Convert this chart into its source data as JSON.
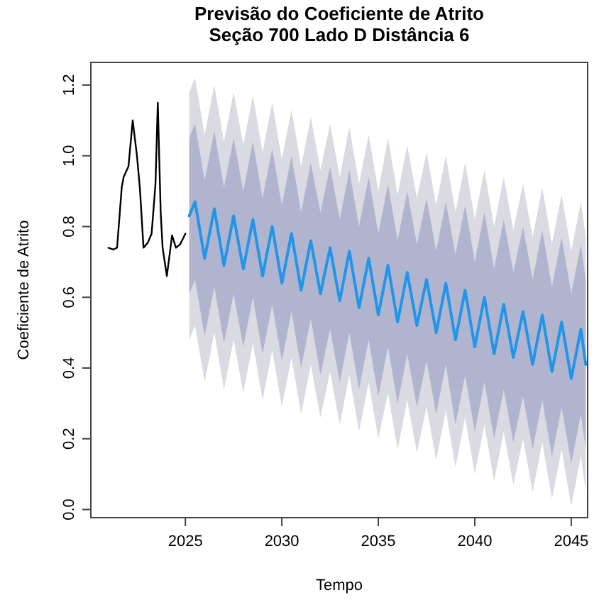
{
  "chart_data": {
    "type": "line",
    "title": "Previsão do Coeficiente de Atrito",
    "subtitle": "Seção 700 Lado D Distância 6",
    "xlabel": "Tempo",
    "ylabel": "Coeficiente de Atrito",
    "xlim": [
      2020.1,
      2045.85
    ],
    "xticks": [
      2025,
      2030,
      2035,
      2040,
      2045
    ],
    "ylim": [
      -0.023,
      1.264
    ],
    "yticks": [
      {
        "value": 0,
        "label": "0.0"
      },
      0.2,
      0.4,
      0.6,
      0.8,
      {
        "value": 1,
        "label": "1.0"
      },
      1.2
    ],
    "grid": false,
    "marker": "none",
    "line_style": "solid",
    "series": [
      {
        "color": "#000000",
        "x": [
          2021.01,
          2021.26,
          2021.46,
          2021.7,
          2021.8,
          2022.05,
          2022.27,
          2022.49,
          2022.64,
          2022.83,
          2023.06,
          2023.25,
          2023.45,
          2023.57,
          2023.72,
          2023.82,
          2024.04,
          2024.31,
          2024.51,
          2024.73,
          2025.0
        ],
        "values": [
          0.74,
          0.735,
          0.74,
          0.91,
          0.94,
          0.97,
          1.1,
          1.0,
          0.91,
          0.74,
          0.755,
          0.78,
          0.92,
          1.15,
          0.84,
          0.74,
          0.66,
          0.775,
          0.74,
          0.75,
          0.78
        ]
      },
      {
        "color": "#d9dae2",
        "x": [
          2025.2,
          2025.5,
          2026,
          2026.5,
          2027,
          2027.5,
          2028,
          2028.5,
          2029,
          2029.5,
          2030,
          2030.5,
          2031,
          2031.5,
          2032,
          2032.5,
          2033,
          2033.5,
          2034,
          2034.5,
          2035,
          2035.5,
          2036,
          2036.5,
          2037,
          2037.5,
          2038,
          2038.5,
          2039,
          2039.5,
          2040,
          2040.5,
          2041,
          2041.5,
          2042,
          2042.5,
          2043,
          2043.5,
          2044,
          2044.5,
          2045,
          2045.5,
          2045.75
        ],
        "values": [
          null,
          null,
          null,
          null,
          null,
          null,
          null,
          null,
          null,
          null,
          null,
          null,
          null,
          null,
          null,
          null,
          null,
          null,
          null,
          null,
          null,
          null,
          null,
          null,
          null,
          null,
          null,
          null,
          null,
          null,
          null,
          null,
          null,
          null,
          null,
          null,
          null,
          null,
          null,
          null,
          null,
          null,
          null
        ],
        "upper": [
          1.18,
          1.22,
          1.06,
          1.2,
          1.04,
          1.18,
          1.03,
          1.17,
          1.01,
          1.15,
          0.99,
          1.13,
          0.97,
          1.11,
          0.96,
          1.09,
          0.94,
          1.08,
          0.92,
          1.06,
          0.9,
          1.05,
          0.89,
          1.03,
          0.88,
          1.01,
          0.86,
          1.0,
          0.84,
          0.98,
          0.82,
          0.96,
          0.8,
          0.94,
          0.79,
          0.92,
          0.77,
          0.91,
          0.75,
          0.89,
          0.73,
          0.87,
          0.77
        ],
        "lower": [
          0.48,
          0.52,
          0.36,
          0.5,
          0.34,
          0.48,
          0.33,
          0.47,
          0.31,
          0.45,
          0.29,
          0.43,
          0.27,
          0.41,
          0.26,
          0.39,
          0.24,
          0.38,
          0.22,
          0.36,
          0.2,
          0.33,
          0.17,
          0.31,
          0.16,
          0.29,
          0.14,
          0.28,
          0.12,
          0.26,
          0.1,
          0.24,
          0.08,
          0.22,
          0.07,
          0.2,
          0.05,
          0.19,
          0.03,
          0.17,
          0.01,
          0.15,
          0.05
        ]
      },
      {
        "color": "#b1b4cf",
        "x": [
          2025.2,
          2025.5,
          2026,
          2026.5,
          2027,
          2027.5,
          2028,
          2028.5,
          2029,
          2029.5,
          2030,
          2030.5,
          2031,
          2031.5,
          2032,
          2032.5,
          2033,
          2033.5,
          2034,
          2034.5,
          2035,
          2035.5,
          2036,
          2036.5,
          2037,
          2037.5,
          2038,
          2038.5,
          2039,
          2039.5,
          2040,
          2040.5,
          2041,
          2041.5,
          2042,
          2042.5,
          2043,
          2043.5,
          2044,
          2044.5,
          2045,
          2045.5,
          2045.75
        ],
        "values": [
          null,
          null,
          null,
          null,
          null,
          null,
          null,
          null,
          null,
          null,
          null,
          null,
          null,
          null,
          null,
          null,
          null,
          null,
          null,
          null,
          null,
          null,
          null,
          null,
          null,
          null,
          null,
          null,
          null,
          null,
          null,
          null,
          null,
          null,
          null,
          null,
          null,
          null,
          null,
          null,
          null,
          null,
          null
        ],
        "upper": [
          1.05,
          1.09,
          0.93,
          1.07,
          0.91,
          1.05,
          0.9,
          1.04,
          0.88,
          1.02,
          0.86,
          1.0,
          0.84,
          0.98,
          0.84,
          0.97,
          0.82,
          0.96,
          0.8,
          0.94,
          0.78,
          0.92,
          0.76,
          0.9,
          0.75,
          0.88,
          0.73,
          0.87,
          0.72,
          0.86,
          0.7,
          0.84,
          0.68,
          0.82,
          0.67,
          0.8,
          0.65,
          0.79,
          0.63,
          0.77,
          0.61,
          0.75,
          0.65
        ],
        "lower": [
          0.61,
          0.65,
          0.49,
          0.63,
          0.47,
          0.61,
          0.46,
          0.6,
          0.44,
          0.58,
          0.42,
          0.56,
          0.4,
          0.54,
          0.38,
          0.51,
          0.36,
          0.5,
          0.34,
          0.48,
          0.32,
          0.46,
          0.3,
          0.44,
          0.29,
          0.42,
          0.27,
          0.41,
          0.24,
          0.38,
          0.22,
          0.36,
          0.2,
          0.34,
          0.19,
          0.32,
          0.17,
          0.31,
          0.15,
          0.29,
          0.13,
          0.27,
          0.17
        ]
      },
      {
        "color": "#2196e8",
        "x": [
          2025.2,
          2025.5,
          2026,
          2026.5,
          2027,
          2027.5,
          2028,
          2028.5,
          2029,
          2029.5,
          2030,
          2030.5,
          2031,
          2031.5,
          2032,
          2032.5,
          2033,
          2033.5,
          2034,
          2034.5,
          2035,
          2035.5,
          2036,
          2036.5,
          2037,
          2037.5,
          2038,
          2038.5,
          2039,
          2039.5,
          2040,
          2040.5,
          2041,
          2041.5,
          2042,
          2042.5,
          2043,
          2043.5,
          2044,
          2044.5,
          2045,
          2045.5,
          2045.75
        ],
        "values": [
          0.83,
          0.87,
          0.71,
          0.85,
          0.69,
          0.83,
          0.68,
          0.82,
          0.66,
          0.8,
          0.64,
          0.78,
          0.62,
          0.76,
          0.61,
          0.74,
          0.59,
          0.73,
          0.57,
          0.71,
          0.55,
          0.69,
          0.53,
          0.67,
          0.52,
          0.65,
          0.5,
          0.64,
          0.48,
          0.62,
          0.46,
          0.6,
          0.44,
          0.58,
          0.43,
          0.56,
          0.41,
          0.55,
          0.39,
          0.53,
          0.37,
          0.51,
          0.41
        ]
      }
    ]
  }
}
